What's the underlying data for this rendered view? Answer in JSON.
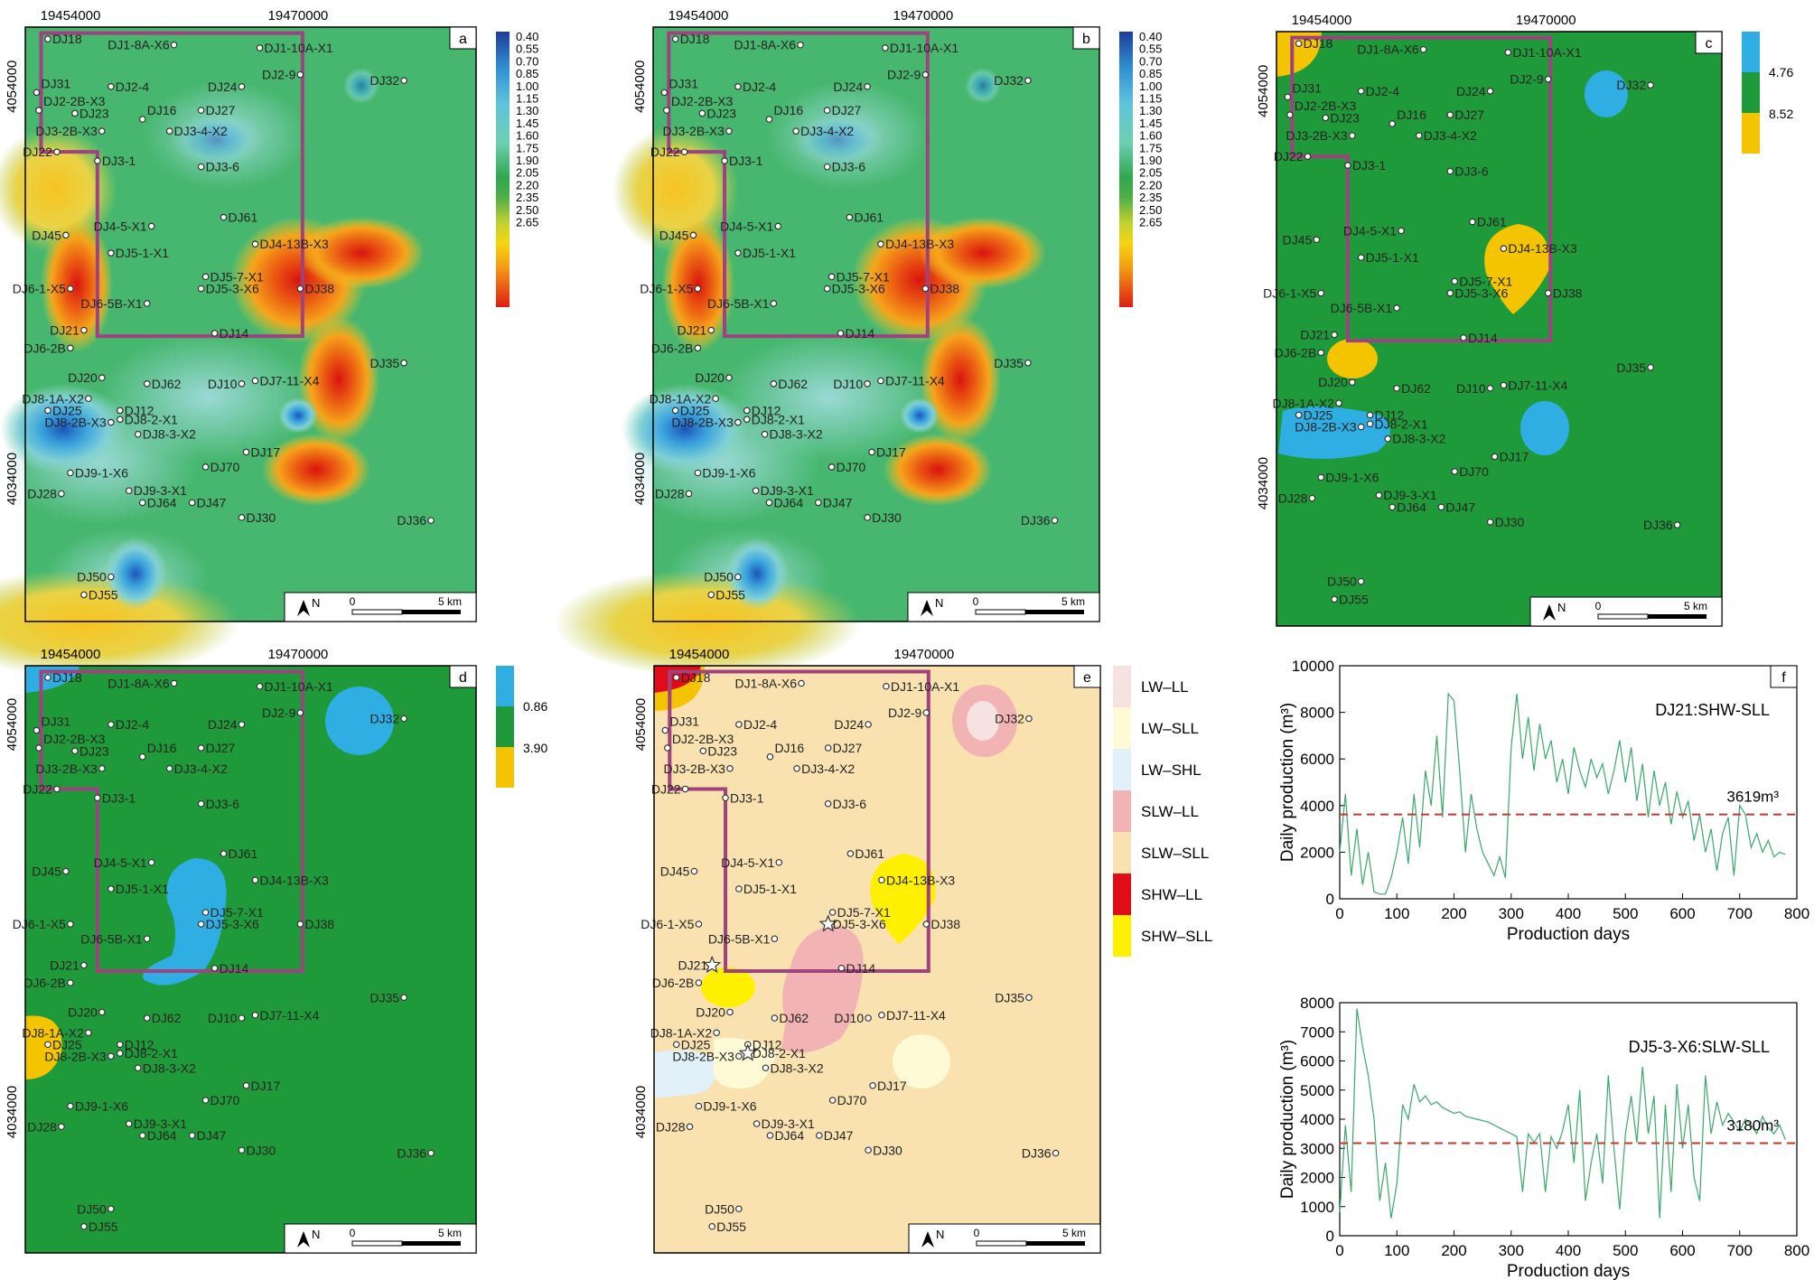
{
  "figure": {
    "axis_labels": {
      "x_left": "19454000",
      "x_right": "19470000",
      "y_top": "4054000",
      "y_bottom": "4034000"
    },
    "panel_letters": [
      "a",
      "b",
      "c",
      "d",
      "e",
      "f"
    ],
    "scale_bar": {
      "start": "0",
      "end": "5 km",
      "north": "N"
    },
    "legend_ab": [
      "0.40",
      "0.55",
      "0.70",
      "0.85",
      "1.00",
      "1.15",
      "1.30",
      "1.45",
      "1.60",
      "1.75",
      "1.90",
      "2.05",
      "2.20",
      "2.35",
      "2.50",
      "2.65"
    ],
    "legend_c": [
      "4.76",
      "8.52"
    ],
    "legend_d": [
      "0.86",
      "3.90"
    ],
    "legend_e": [
      "LW–LL",
      "LW–SLL",
      "LW–SHL",
      "SLW–LL",
      "SLW–SLL",
      "SHW–LL",
      "SHW–SLL"
    ],
    "colors": {
      "boundary": "#a0427f",
      "green": "#1f9a3a",
      "blue": "#2eaee2",
      "yellow": "#f5c400",
      "sand": "#f9e2b0",
      "pink": "#f2b3b5",
      "red": "#e00d18",
      "light_yellow": "#fffad6",
      "light_blue": "#e2f0fa",
      "light_pink": "#f7e2e2"
    },
    "wells": [
      "DJ18",
      "DJ1-8A-X6",
      "DJ1-10A-X1",
      "DJ2-9",
      "DJ31",
      "DJ32",
      "DJ2-4",
      "DJ24",
      "DJ2-2B-X3",
      "DJ23",
      "DJ16",
      "DJ27",
      "DJ3-2B-X3",
      "DJ3-4-X2",
      "DJ22",
      "DJ3-1",
      "DJ3-6",
      "DJ61",
      "DJ45",
      "DJ4-5-X1",
      "DJ4-13B-X3",
      "DJ5-1-X1",
      "DJ6-1-X5",
      "DJ5-7-X1",
      "DJ5-3-X6",
      "DJ38",
      "DJ6-5B-X1",
      "DJ21",
      "DJ14",
      "DJ6-2B",
      "DJ35",
      "DJ20",
      "DJ62",
      "DJ10",
      "DJ7-11-X4",
      "DJ8-1A-X2",
      "DJ25",
      "DJ12",
      "DJ8-2B-X3",
      "DJ8-2-X1",
      "DJ8-3-X2",
      "DJ17",
      "DJ9-1-X6",
      "DJ70",
      "DJ28",
      "DJ9-3-X1",
      "DJ64",
      "DJ47",
      "DJ30",
      "DJ36",
      "DJ50",
      "DJ55"
    ]
  },
  "chart_data": [
    {
      "type": "line",
      "title": "DJ21:SHW-SLL",
      "xlabel": "Production days",
      "ylabel": "Daily production (m³)",
      "xlim": [
        0,
        800
      ],
      "ylim": [
        0,
        10000
      ],
      "xticks": [
        "0",
        "100",
        "200",
        "300",
        "400",
        "500",
        "600",
        "700",
        "800"
      ],
      "yticks": [
        "0",
        "2000",
        "4000",
        "6000",
        "8000",
        "10000"
      ],
      "reference_line": {
        "value": 3619,
        "label": "3619m³"
      },
      "series": [
        {
          "name": "DJ21",
          "x": [
            0,
            10,
            20,
            30,
            40,
            50,
            60,
            70,
            80,
            90,
            100,
            110,
            120,
            130,
            140,
            150,
            160,
            170,
            180,
            190,
            200,
            210,
            220,
            230,
            240,
            250,
            260,
            270,
            280,
            290,
            300,
            310,
            320,
            330,
            340,
            350,
            360,
            370,
            380,
            390,
            400,
            410,
            420,
            430,
            440,
            450,
            460,
            470,
            480,
            490,
            500,
            510,
            520,
            530,
            540,
            550,
            560,
            570,
            580,
            590,
            600,
            610,
            620,
            630,
            640,
            650,
            660,
            670,
            680,
            690,
            700,
            710,
            720,
            730,
            740,
            750,
            760,
            770,
            780
          ],
          "values": [
            2000,
            4500,
            1000,
            3000,
            600,
            2000,
            300,
            200,
            200,
            900,
            2000,
            3500,
            1500,
            4500,
            2200,
            5500,
            4000,
            7000,
            3500,
            8800,
            8500,
            5500,
            2000,
            4500,
            3000,
            2000,
            1500,
            1000,
            1800,
            900,
            6500,
            8800,
            6000,
            7800,
            5500,
            7500,
            6000,
            6800,
            5000,
            6000,
            4500,
            6500,
            5500,
            4800,
            6000,
            5200,
            5800,
            4500,
            5500,
            6800,
            5000,
            6500,
            4200,
            5800,
            3500,
            5500,
            4000,
            5000,
            3200,
            4600,
            3500,
            4200,
            2500,
            3600,
            2000,
            3000,
            1200,
            2800,
            3500,
            1000,
            4000,
            3600,
            2200,
            2800,
            2000,
            2500,
            1800,
            2000,
            1900
          ]
        }
      ]
    },
    {
      "type": "line",
      "title": "DJ5-3-X6:SLW-SLL",
      "xlabel": "Production days",
      "ylabel": "Daily production (m³)",
      "xlim": [
        0,
        800
      ],
      "ylim": [
        0,
        8000
      ],
      "xticks": [
        "0",
        "100",
        "200",
        "300",
        "400",
        "500",
        "600",
        "700",
        "800"
      ],
      "yticks": [
        "0",
        "1000",
        "2000",
        "3000",
        "4000",
        "5000",
        "6000",
        "7000",
        "8000"
      ],
      "reference_line": {
        "value": 3180,
        "label": "3180m³"
      },
      "series": [
        {
          "name": "DJ5-3-X6",
          "x": [
            0,
            10,
            20,
            30,
            40,
            50,
            60,
            70,
            80,
            90,
            100,
            110,
            120,
            130,
            140,
            150,
            160,
            170,
            180,
            190,
            200,
            210,
            220,
            230,
            240,
            250,
            260,
            270,
            280,
            290,
            300,
            310,
            320,
            330,
            340,
            350,
            360,
            370,
            380,
            390,
            400,
            410,
            420,
            430,
            440,
            450,
            460,
            470,
            480,
            490,
            500,
            510,
            520,
            530,
            540,
            550,
            560,
            570,
            580,
            590,
            600,
            610,
            620,
            630,
            640,
            650,
            660,
            670,
            680,
            690,
            700,
            710,
            720,
            730,
            740,
            750,
            760,
            770,
            780
          ],
          "values": [
            800,
            3800,
            1500,
            7800,
            6500,
            5500,
            4000,
            1200,
            2500,
            600,
            1800,
            4500,
            4000,
            5200,
            4600,
            4800,
            4500,
            4600,
            4400,
            4300,
            4200,
            4250,
            4100,
            4050,
            4000,
            3950,
            3900,
            3800,
            3700,
            3600,
            3500,
            3400,
            1500,
            3500,
            3200,
            3500,
            1500,
            3400,
            3000,
            3600,
            4500,
            2500,
            5000,
            1200,
            2500,
            3500,
            1800,
            5500,
            3000,
            900,
            3500,
            4800,
            3200,
            5800,
            3500,
            4800,
            600,
            4500,
            1500,
            5200,
            3000,
            4500,
            2000,
            1200,
            5500,
            3500,
            4600,
            3800,
            4200,
            3900,
            3600,
            4000,
            3800,
            3500,
            4100,
            3700,
            3500,
            3800,
            3300
          ]
        }
      ]
    }
  ]
}
